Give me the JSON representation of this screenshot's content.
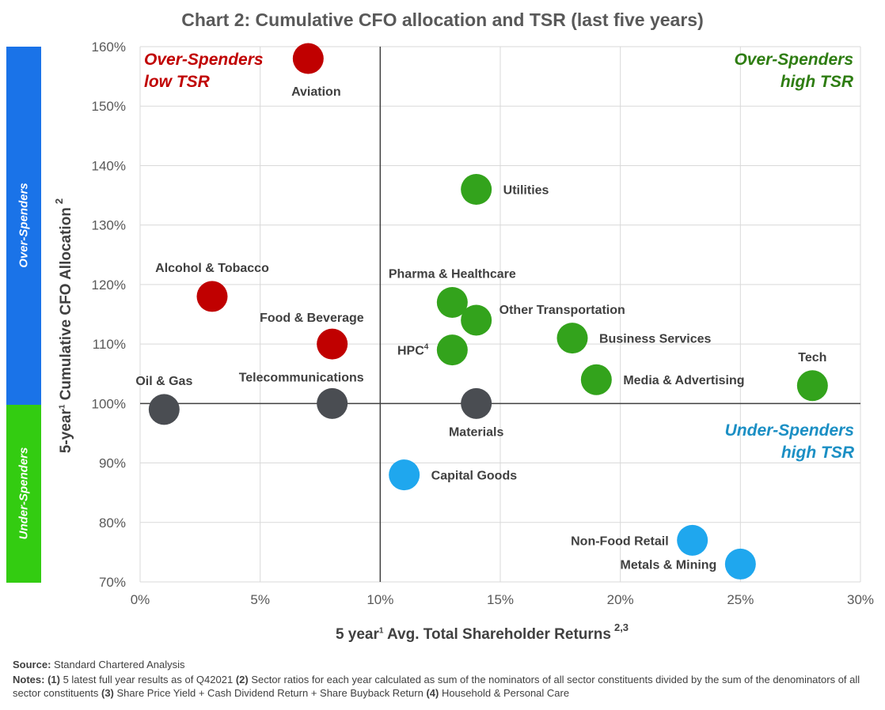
{
  "title": "Chart 2: Cumulative CFO allocation and TSR (last five years)",
  "side_bands": {
    "over_label": "Over-Spenders",
    "under_label": "Under-Spenders",
    "over_color": "#1a73e8",
    "under_color": "#33cc11"
  },
  "chart_data": {
    "type": "scatter",
    "xlabel_text": "5 year",
    "xlabel_sup1": "1",
    "xlabel_rest": " Avg. Total Shareholder Returns",
    "xlabel_sup2": "2,3",
    "ylabel_text": "5-year",
    "ylabel_sup1": "1",
    "ylabel_rest": " Cumulative CFO Allocation",
    "ylabel_sup2": "2",
    "xlim": [
      0,
      30
    ],
    "ylim": [
      70,
      160
    ],
    "x_ticks": [
      {
        "value": 0,
        "label": "0%"
      },
      {
        "value": 5,
        "label": "5%"
      },
      {
        "value": 10,
        "label": "10%"
      },
      {
        "value": 15,
        "label": "15%"
      },
      {
        "value": 20,
        "label": "20%"
      },
      {
        "value": 25,
        "label": "25%"
      },
      {
        "value": 30,
        "label": "30%"
      }
    ],
    "y_ticks": [
      {
        "value": 70,
        "label": "70%"
      },
      {
        "value": 80,
        "label": "80%"
      },
      {
        "value": 90,
        "label": "90%"
      },
      {
        "value": 100,
        "label": "100%"
      },
      {
        "value": 110,
        "label": "110%"
      },
      {
        "value": 120,
        "label": "120%"
      },
      {
        "value": 130,
        "label": "130%"
      },
      {
        "value": 140,
        "label": "140%"
      },
      {
        "value": 150,
        "label": "150%"
      },
      {
        "value": 160,
        "label": "160%"
      }
    ],
    "grid": true,
    "reference_lines": {
      "x": 10,
      "y": 100
    },
    "colors": {
      "red": "#c00000",
      "green": "#33a31c",
      "gray": "#4a4d52",
      "blue": "#1fa7ee"
    },
    "quadrant_labels": [
      {
        "line1": "Over-Spenders",
        "line2": "low TSR",
        "color": "#c00000",
        "position": "top-left"
      },
      {
        "line1": "Over-Spenders",
        "line2": "high TSR",
        "color": "#2e7d12",
        "position": "top-right"
      },
      {
        "line1": "Under-Spenders",
        "line2": "high TSR",
        "color": "#1b8fc4",
        "position": "right-middle"
      }
    ],
    "points": [
      {
        "name": "Aviation",
        "x": 7,
        "y": 158,
        "group": "red",
        "label_pos": "below"
      },
      {
        "name": "Alcohol & Tobacco",
        "x": 3,
        "y": 118,
        "group": "red",
        "label_pos": "above"
      },
      {
        "name": "Food & Beverage",
        "x": 8,
        "y": 110,
        "group": "red",
        "label_pos": "above-left"
      },
      {
        "name": "Oil & Gas",
        "x": 1,
        "y": 99,
        "group": "gray",
        "label_pos": "above"
      },
      {
        "name": "Telecommunications",
        "x": 8,
        "y": 100,
        "group": "gray",
        "label_pos": "above-left"
      },
      {
        "name": "Materials",
        "x": 14,
        "y": 100,
        "group": "gray",
        "label_pos": "below-left"
      },
      {
        "name": "Utilities",
        "x": 14,
        "y": 136,
        "group": "green",
        "label_pos": "right"
      },
      {
        "name": "Pharma & Healthcare",
        "x": 13,
        "y": 117,
        "group": "green",
        "label_pos": "above"
      },
      {
        "name": "Other Transportation",
        "x": 14,
        "y": 114,
        "group": "green",
        "label_pos": "right-up"
      },
      {
        "name": "HPC",
        "label_sup": "4",
        "x": 13,
        "y": 109,
        "group": "green",
        "label_pos": "left"
      },
      {
        "name": "Business Services",
        "x": 18,
        "y": 111,
        "group": "green",
        "label_pos": "right"
      },
      {
        "name": "Media & Advertising",
        "x": 19,
        "y": 104,
        "group": "green",
        "label_pos": "right"
      },
      {
        "name": "Tech",
        "x": 28,
        "y": 103,
        "group": "green",
        "label_pos": "above"
      },
      {
        "name": "Capital Goods",
        "x": 11,
        "y": 88,
        "group": "blue",
        "label_pos": "right"
      },
      {
        "name": "Non-Food Retail",
        "x": 23,
        "y": 77,
        "group": "blue",
        "label_pos": "left"
      },
      {
        "name": "Metals & Mining",
        "x": 25,
        "y": 73,
        "group": "blue",
        "label_pos": "left"
      }
    ]
  },
  "footer": {
    "source_key": "Source:",
    "source_text": " Standard Chartered Analysis",
    "notes_key": "Notes:",
    "n1_key": "(1)",
    "n1_text": " 5 latest full year results as of Q42021 ",
    "n2_key": "(2)",
    "n2_text": " Sector ratios for each year calculated as sum of the nominators of all sector constituents divided by the sum of the denominators of all sector constituents ",
    "n3_key": "(3)",
    "n3_text": " Share Price Yield + Cash Dividend Return  + Share Buyback Return ",
    "n4_key": "(4)",
    "n4_text": " Household & Personal Care"
  }
}
